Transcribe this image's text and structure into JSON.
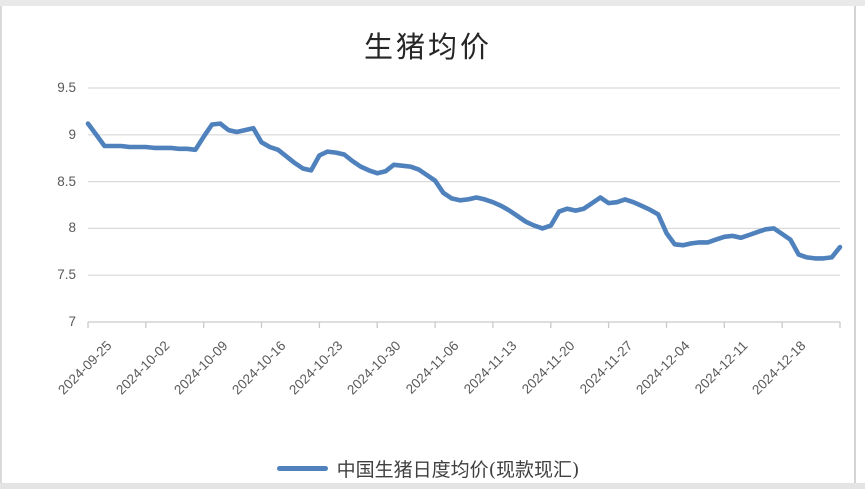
{
  "colors": {
    "line": "#4F81BD",
    "gridline": "#D9D9D9",
    "axis": "#C9C9C9",
    "tick_label": "#595959",
    "title": "#262626",
    "frame_border": "#E4E4E4"
  },
  "legend": {
    "label": "中国生猪日度均价(现款现汇)"
  },
  "chart_data": {
    "type": "line",
    "title": "生猪均价",
    "xlabel": "",
    "ylabel": "",
    "ylim": [
      7,
      9.5
    ],
    "y_ticks": [
      7,
      7.5,
      8,
      8.5,
      9,
      9.5
    ],
    "grid": "horizontal",
    "legend_position": "bottom",
    "x_tick_labels": [
      "2024-09-25",
      "2024-10-02",
      "2024-10-09",
      "2024-10-16",
      "2024-10-23",
      "2024-10-30",
      "2024-11-06",
      "2024-11-13",
      "2024-11-20",
      "2024-11-27",
      "2024-12-04",
      "2024-12-11",
      "2024-12-18"
    ],
    "x": [
      "2024-09-25",
      "2024-09-26",
      "2024-09-27",
      "2024-09-28",
      "2024-09-29",
      "2024-09-30",
      "2024-10-01",
      "2024-10-02",
      "2024-10-03",
      "2024-10-04",
      "2024-10-05",
      "2024-10-06",
      "2024-10-07",
      "2024-10-08",
      "2024-10-09",
      "2024-10-10",
      "2024-10-11",
      "2024-10-12",
      "2024-10-13",
      "2024-10-14",
      "2024-10-15",
      "2024-10-16",
      "2024-10-17",
      "2024-10-18",
      "2024-10-19",
      "2024-10-20",
      "2024-10-21",
      "2024-10-22",
      "2024-10-23",
      "2024-10-24",
      "2024-10-25",
      "2024-10-26",
      "2024-10-27",
      "2024-10-28",
      "2024-10-29",
      "2024-10-30",
      "2024-10-31",
      "2024-11-01",
      "2024-11-02",
      "2024-11-03",
      "2024-11-04",
      "2024-11-05",
      "2024-11-06",
      "2024-11-07",
      "2024-11-08",
      "2024-11-09",
      "2024-11-10",
      "2024-11-11",
      "2024-11-12",
      "2024-11-13",
      "2024-11-14",
      "2024-11-15",
      "2024-11-16",
      "2024-11-17",
      "2024-11-18",
      "2024-11-19",
      "2024-11-20",
      "2024-11-21",
      "2024-11-22",
      "2024-11-23",
      "2024-11-24",
      "2024-11-25",
      "2024-11-26",
      "2024-11-27",
      "2024-11-28",
      "2024-11-29",
      "2024-11-30",
      "2024-12-01",
      "2024-12-02",
      "2024-12-03",
      "2024-12-04",
      "2024-12-05",
      "2024-12-06",
      "2024-12-07",
      "2024-12-08",
      "2024-12-09",
      "2024-12-10",
      "2024-12-11",
      "2024-12-12",
      "2024-12-13",
      "2024-12-14",
      "2024-12-15",
      "2024-12-16",
      "2024-12-17",
      "2024-12-18",
      "2024-12-19",
      "2024-12-20",
      "2024-12-21",
      "2024-12-22",
      "2024-12-23",
      "2024-12-24",
      "2024-12-25"
    ],
    "series": [
      {
        "name": "中国生猪日度均价(现款现汇)",
        "values": [
          9.12,
          9.0,
          8.88,
          8.88,
          8.88,
          8.87,
          8.87,
          8.87,
          8.86,
          8.86,
          8.86,
          8.85,
          8.85,
          8.84,
          8.98,
          9.11,
          9.12,
          9.05,
          9.03,
          9.05,
          9.07,
          8.92,
          8.87,
          8.84,
          8.77,
          8.7,
          8.64,
          8.62,
          8.78,
          8.82,
          8.81,
          8.79,
          8.72,
          8.66,
          8.62,
          8.59,
          8.61,
          8.68,
          8.67,
          8.66,
          8.63,
          8.57,
          8.51,
          8.38,
          8.32,
          8.3,
          8.31,
          8.33,
          8.31,
          8.28,
          8.24,
          8.19,
          8.13,
          8.07,
          8.03,
          8.0,
          8.03,
          8.18,
          8.21,
          8.19,
          8.21,
          8.27,
          8.33,
          8.27,
          8.28,
          8.31,
          8.28,
          8.24,
          8.2,
          8.15,
          7.95,
          7.83,
          7.82,
          7.84,
          7.85,
          7.85,
          7.88,
          7.91,
          7.92,
          7.9,
          7.93,
          7.96,
          7.99,
          8.0,
          7.94,
          7.88,
          7.72,
          7.69,
          7.68,
          7.68,
          7.69,
          7.8
        ]
      }
    ]
  }
}
